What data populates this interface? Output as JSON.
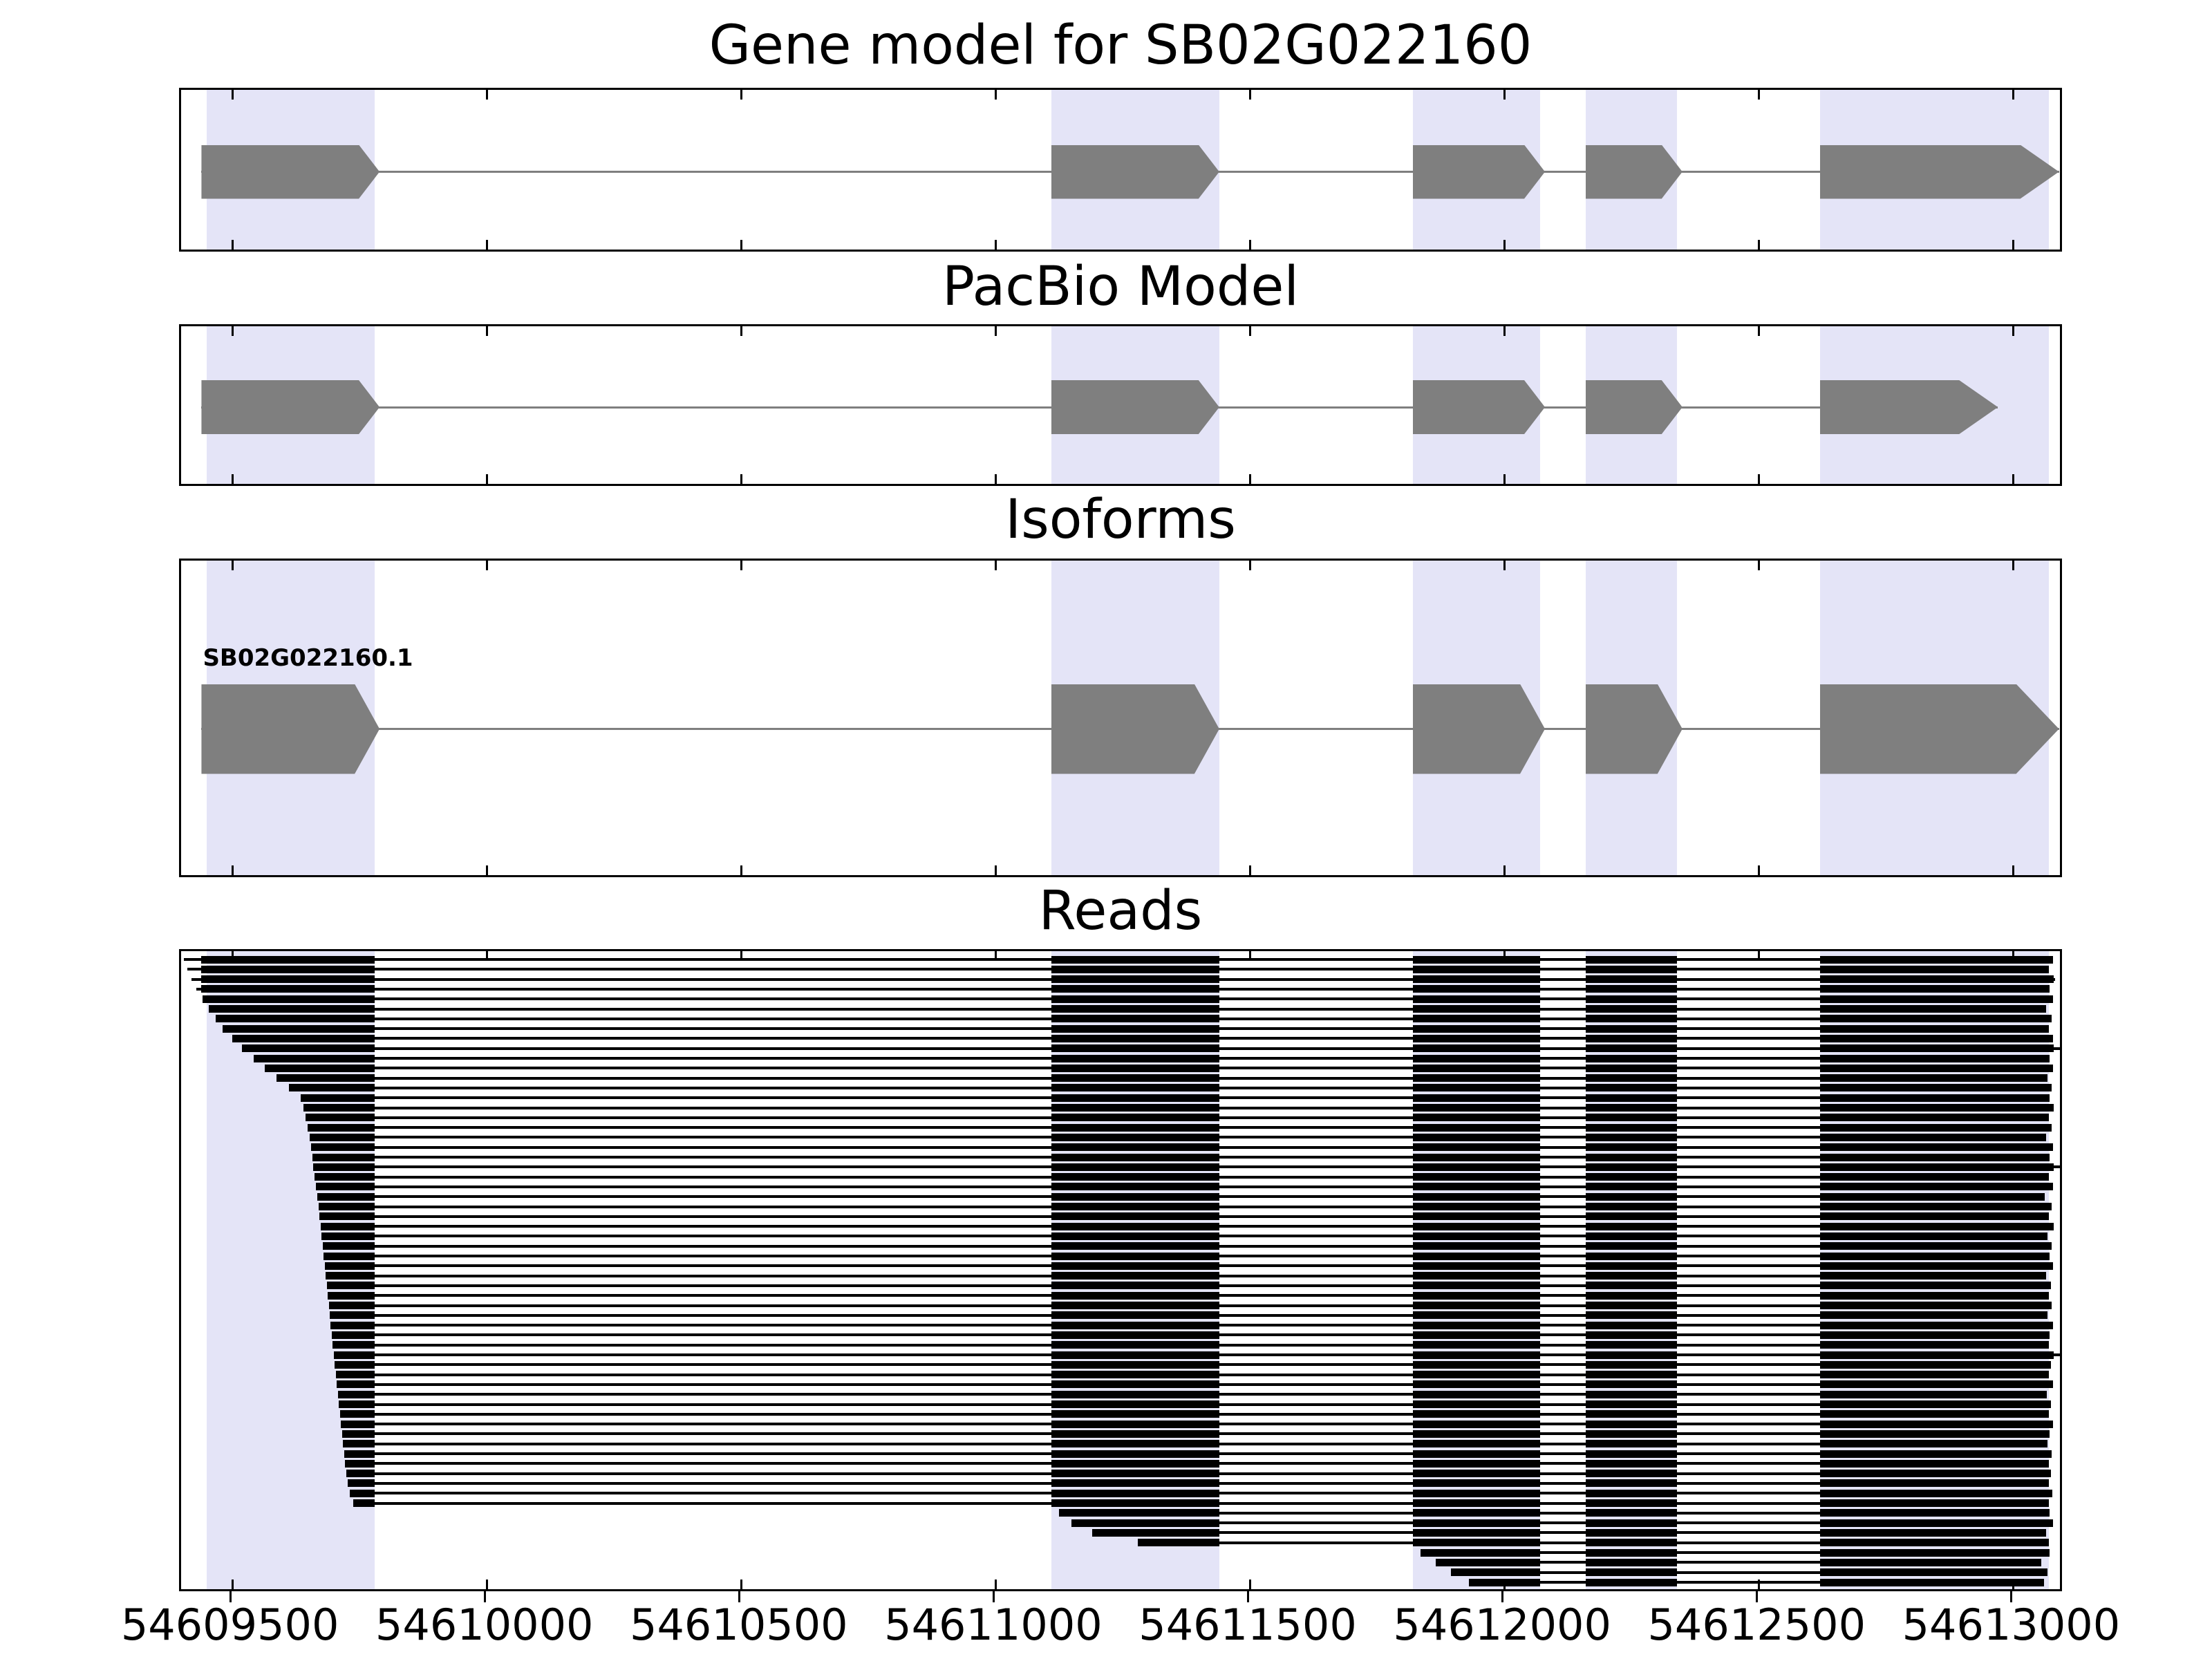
{
  "chart_data": {
    "type": "genome-browser-tracks",
    "title": "Gene model for SB02G022160",
    "x_axis": {
      "min": 54609400,
      "max": 54613100,
      "ticks": [
        54609500,
        54610000,
        54610500,
        54611000,
        54611500,
        54612000,
        54612500,
        54613000
      ],
      "tick_labels": [
        "54609500",
        "54610000",
        "54610500",
        "54611000",
        "54611500",
        "54612000",
        "54612500",
        "54613000"
      ]
    },
    "colors": {
      "exon": "#7f7f7f",
      "connector": "#7f7f7f",
      "highlight": "#e4e4f7",
      "read": "#000000",
      "frame": "#000000",
      "background": "#ffffff"
    },
    "highlight_regions": [
      [
        54609450,
        54609780
      ],
      [
        54611110,
        54611440
      ],
      [
        54611820,
        54612070
      ],
      [
        54612160,
        54612340
      ],
      [
        54612620,
        54613070
      ]
    ],
    "panels": [
      {
        "id": "gene-model",
        "title": "Gene model for SB02G022160",
        "type": "gene",
        "exons": [
          [
            54609440,
            54609790
          ],
          [
            54611110,
            54611440
          ],
          [
            54611820,
            54612080
          ],
          [
            54612160,
            54612350
          ],
          [
            54612620,
            54613090
          ]
        ]
      },
      {
        "id": "pacbio",
        "title": "PacBio Model",
        "type": "gene",
        "exons": [
          [
            54609440,
            54609790
          ],
          [
            54611110,
            54611440
          ],
          [
            54611820,
            54612080
          ],
          [
            54612160,
            54612350
          ],
          [
            54612620,
            54612970
          ]
        ]
      },
      {
        "id": "isoforms",
        "title": "Isoforms",
        "type": "gene",
        "label": "SB02G022160.1",
        "exons": [
          [
            54609440,
            54609790
          ],
          [
            54611110,
            54611440
          ],
          [
            54611820,
            54612080
          ],
          [
            54612160,
            54612350
          ],
          [
            54612620,
            54613090
          ]
        ]
      },
      {
        "id": "reads",
        "title": "Reads",
        "type": "reads",
        "read_exons": [
          [
            54609440,
            54609780
          ],
          [
            54611110,
            54611440
          ],
          [
            54611820,
            54612070
          ],
          [
            54612160,
            54612340
          ],
          [
            54612620,
            54613080
          ]
        ],
        "reads": [
          [
            54609405,
            54613078
          ],
          [
            54609412,
            54613070
          ],
          [
            54609420,
            54613082
          ],
          [
            54609430,
            54613072
          ],
          [
            54609442,
            54613078
          ],
          [
            54609455,
            54613065
          ],
          [
            54609468,
            54613075
          ],
          [
            54609482,
            54613070
          ],
          [
            54609500,
            54613078
          ],
          [
            54609520,
            54613095
          ],
          [
            54609542,
            54613072
          ],
          [
            54609565,
            54613078
          ],
          [
            54609588,
            54613068
          ],
          [
            54609612,
            54613075
          ],
          [
            54609635,
            54613072
          ],
          [
            54609640,
            54613080
          ],
          [
            54609645,
            54613070
          ],
          [
            54609648,
            54613075
          ],
          [
            54609652,
            54613065
          ],
          [
            54609655,
            54613078
          ],
          [
            54609658,
            54613072
          ],
          [
            54609660,
            54613095
          ],
          [
            54609662,
            54613070
          ],
          [
            54609665,
            54613078
          ],
          [
            54609668,
            54613062
          ],
          [
            54609670,
            54613075
          ],
          [
            54609672,
            54613070
          ],
          [
            54609674,
            54613080
          ],
          [
            54609676,
            54613068
          ],
          [
            54609678,
            54613075
          ],
          [
            54609680,
            54613072
          ],
          [
            54609682,
            54613078
          ],
          [
            54609684,
            54613065
          ],
          [
            54609686,
            54613074
          ],
          [
            54609688,
            54613070
          ],
          [
            54609690,
            54613076
          ],
          [
            54609692,
            54613068
          ],
          [
            54609694,
            54613078
          ],
          [
            54609696,
            54613072
          ],
          [
            54609698,
            54613070
          ],
          [
            54609700,
            54613092
          ],
          [
            54609702,
            54613074
          ],
          [
            54609704,
            54613070
          ],
          [
            54609706,
            54613078
          ],
          [
            54609708,
            54613066
          ],
          [
            54609710,
            54613074
          ],
          [
            54609712,
            54613070
          ],
          [
            54609714,
            54613078
          ],
          [
            54609716,
            54613072
          ],
          [
            54609718,
            54613068
          ],
          [
            54609720,
            54613076
          ],
          [
            54609722,
            54613070
          ],
          [
            54609725,
            54613074
          ],
          [
            54609728,
            54613070
          ],
          [
            54609732,
            54613077
          ],
          [
            54609738,
            54613070
          ],
          [
            54611125,
            54613072
          ],
          [
            54611150,
            54613078
          ],
          [
            54611190,
            54613065
          ],
          [
            54611280,
            54613070
          ],
          [
            54611835,
            54613072
          ],
          [
            54611865,
            54613055
          ],
          [
            54611895,
            54613068
          ],
          [
            54611930,
            54613060
          ]
        ]
      }
    ]
  }
}
